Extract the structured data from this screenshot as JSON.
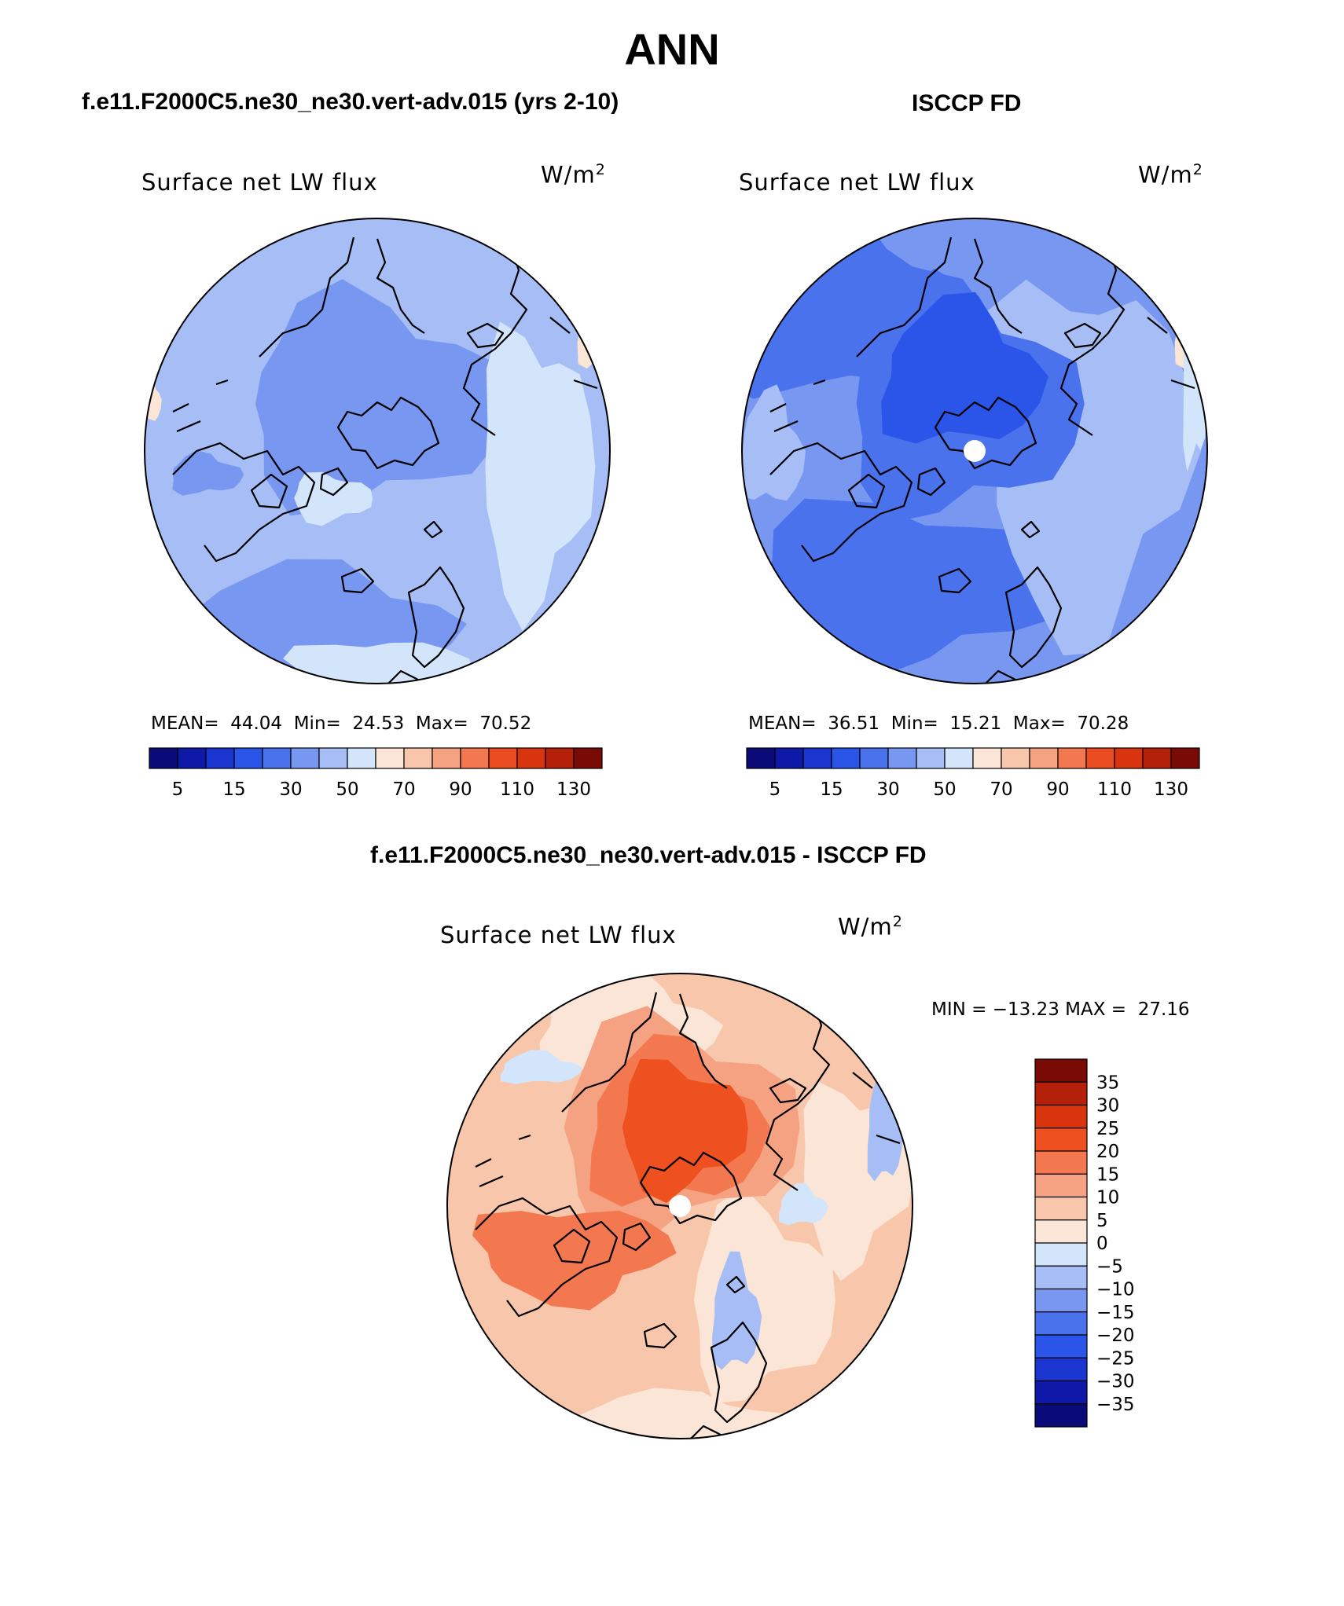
{
  "title": "ANN",
  "panels": [
    {
      "heading": "f.e11.F2000C5.ne30_ne30.vert-adv.015 (yrs 2-10)",
      "variable": "Surface net LW flux",
      "units": "W/m",
      "units_sup": "2",
      "stats": {
        "mean_label": "MEAN=",
        "mean": "44.04",
        "min_label": "Min=",
        "min": "24.53",
        "max_label": "Max=",
        "max": "70.52"
      },
      "has_pole_hole": false,
      "field": "model"
    },
    {
      "heading": "ISCCP FD",
      "variable": "Surface net LW flux",
      "units": "W/m",
      "units_sup": "2",
      "stats": {
        "mean_label": "MEAN=",
        "mean": "36.51",
        "min_label": "Min=",
        "min": "15.21",
        "max_label": "Max=",
        "max": "70.28"
      },
      "has_pole_hole": true,
      "field": "obs"
    },
    {
      "heading": "f.e11.F2000C5.ne30_ne30.vert-adv.015 - ISCCP FD",
      "variable": "Surface net LW flux",
      "units": "W/m",
      "units_sup": "2",
      "stats_text": "MIN = −13.23 MAX =  27.16",
      "has_pole_hole": true,
      "field": "diff"
    }
  ],
  "abs_colorbar": {
    "colors": [
      "#0a0a78",
      "#0f19a8",
      "#1a35d0",
      "#2a55e8",
      "#4a72ec",
      "#7797f0",
      "#a6bef5",
      "#d3e5fa",
      "#fbe5d6",
      "#f8c6ab",
      "#f5a282",
      "#f3784f",
      "#ec4c22",
      "#d8340e",
      "#b5200a",
      "#7a0a06"
    ],
    "tick_labels": [
      "5",
      "15",
      "30",
      "50",
      "70",
      "90",
      "110",
      "130"
    ]
  },
  "diff_colorbar": {
    "colors_top_to_bottom": [
      "#7a0a06",
      "#b5200a",
      "#d8340e",
      "#ee5020",
      "#f3784f",
      "#f5a282",
      "#f8c6ab",
      "#fbe5d6",
      "#d3e5fa",
      "#a6bef5",
      "#7797f0",
      "#4a72ec",
      "#2a55e8",
      "#1a35d0",
      "#0f19a8",
      "#0a0a78"
    ],
    "tick_labels": [
      "35",
      "30",
      "25",
      "20",
      "15",
      "10",
      "5",
      "0",
      "−5",
      "−10",
      "−15",
      "−20",
      "−25",
      "−30",
      "−35"
    ]
  },
  "palette": {
    "model_base": "#a6bef5",
    "model_mid": "#7797f0",
    "model_light": "#d3e5fa",
    "model_warm": "#fbe5d6",
    "obs_base": "#7797f0",
    "obs_dark": "#4a72ec",
    "obs_darker": "#2a55e8",
    "obs_light": "#a6bef5",
    "obs_lighter": "#d3e5fa",
    "diff_base": "#f8c6ab",
    "diff_light": "#fbe5d6",
    "diff_mid": "#f5a282",
    "diff_strong": "#f3784f",
    "diff_core": "#ee5020",
    "diff_blue": "#d3e5fa",
    "diff_blue2": "#a6bef5"
  }
}
